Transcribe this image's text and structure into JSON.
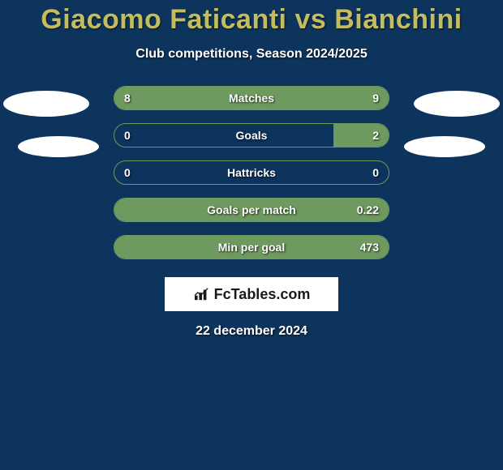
{
  "title": "Giacomo Faticanti vs Bianchini",
  "subtitle": "Club competitions, Season 2024/2025",
  "date": "22 december 2024",
  "brand": "FcTables.com",
  "colors": {
    "background": "#0d345d",
    "accent": "#c4bd5f",
    "bar_fill": "#6e9a5f",
    "bar_border": "#6e9a5f",
    "text": "#ffffff"
  },
  "stats": [
    {
      "label": "Matches",
      "left_val": "8",
      "right_val": "9",
      "left_pct": 47,
      "right_pct": 53
    },
    {
      "label": "Goals",
      "left_val": "0",
      "right_val": "2",
      "left_pct": 0,
      "right_pct": 20
    },
    {
      "label": "Hattricks",
      "left_val": "0",
      "right_val": "0",
      "left_pct": 0,
      "right_pct": 0
    },
    {
      "label": "Goals per match",
      "left_val": "",
      "right_val": "0.22",
      "left_pct": 0,
      "right_pct": 100
    },
    {
      "label": "Min per goal",
      "left_val": "",
      "right_val": "473",
      "left_pct": 0,
      "right_pct": 100
    }
  ]
}
